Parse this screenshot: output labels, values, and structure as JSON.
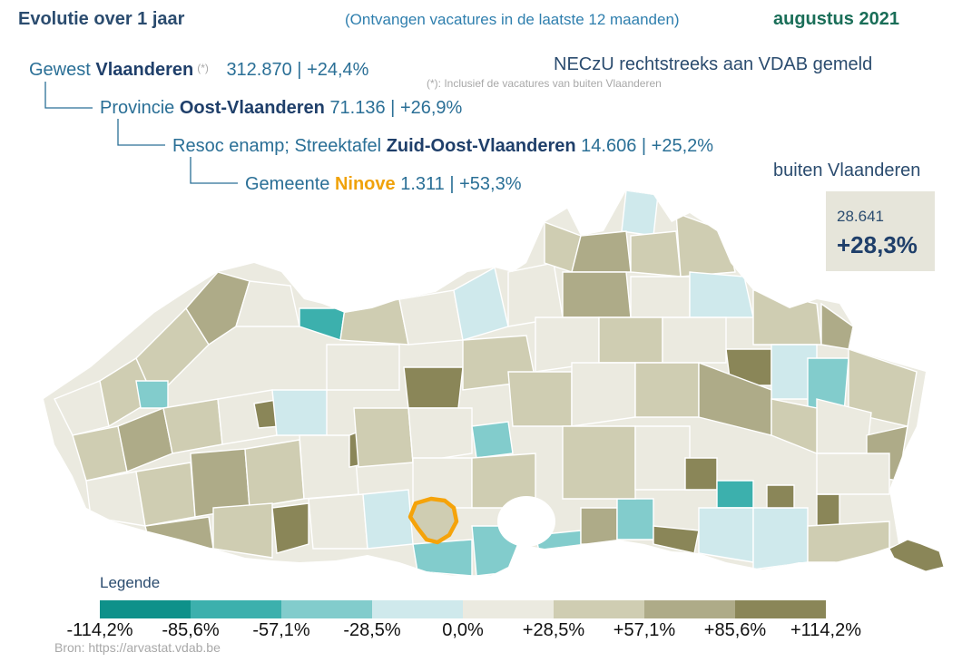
{
  "header": {
    "title": "Evolutie over 1 jaar",
    "subtitle": "(Ontvangen vacatures in de laatste 12 maanden)",
    "period": "augustus 2021"
  },
  "levels": {
    "gewest": {
      "prefix": "Gewest",
      "name": "Vlaanderen",
      "marker": "(*)",
      "count": "312.870",
      "sep": "|",
      "change": "+24,4%"
    },
    "provincie": {
      "prefix": "Provincie",
      "name": "Oost-Vlaanderen",
      "count": "71.136",
      "sep": "|",
      "change": "+26,9%"
    },
    "resoc": {
      "prefix": "Resoc enamp; Streektafel",
      "name": "Zuid-Oost-Vlaanderen",
      "count": "14.606",
      "sep": "|",
      "change": "+25,2%"
    },
    "gemeente": {
      "prefix": "Gemeente",
      "name": "Ninove",
      "count": "1.311",
      "sep": "|",
      "change": "+53,3%"
    }
  },
  "footnote": "(*): Inclusief de vacatures van buiten Vlaanderen",
  "neczu": "NECzU rechtstreeks aan VDAB gemeld",
  "buiten": {
    "label": "buiten Vlaanderen",
    "count": "28.641",
    "change": "+28,3%"
  },
  "legend": {
    "title": "Legende",
    "ticks": [
      "-114,2%",
      "-85,6%",
      "-57,1%",
      "-28,5%",
      "0,0%",
      "+28,5%",
      "+57,1%",
      "+85,6%",
      "+114,2%"
    ],
    "colors": [
      "#0e918a",
      "#3cb0ad",
      "#82cccc",
      "#cfe9ec",
      "#ebeae0",
      "#cfcdb2",
      "#aeab88",
      "#8a8658"
    ]
  },
  "map": {
    "highlight_color": "#f5a30a",
    "highlight_name": "Ninove"
  },
  "source": "Bron: https://arvastat.vdab.be"
}
